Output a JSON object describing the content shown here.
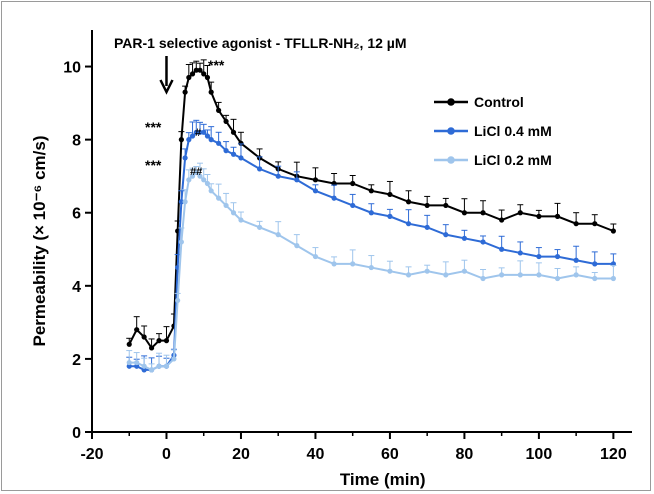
{
  "chart_data": {
    "type": "line",
    "title": "",
    "xlabel": "Time (min)",
    "ylabel": "Permeability (× 10⁻⁶ cm/s)",
    "xlim": [
      -20,
      125
    ],
    "ylim": [
      0,
      11
    ],
    "xticks": [
      -20,
      0,
      20,
      40,
      60,
      80,
      100,
      120
    ],
    "yticks": [
      0,
      2,
      4,
      6,
      8,
      10
    ],
    "grid": false,
    "legend_position": "top-right",
    "annotation": "PAR-1 selective agonist - TFLLR-NH₂, 12 µM",
    "significance_marks": [
      {
        "label": "***",
        "near": "Control peak"
      },
      {
        "label": "***",
        "near": "Control rise"
      },
      {
        "label": "***",
        "near": "LiCl 0.2 mM rise"
      },
      {
        "label": "#",
        "near": "LiCl 0.4 mM peak"
      },
      {
        "label": "##",
        "near": "LiCl 0.2 mM peak"
      }
    ],
    "series": [
      {
        "name": "Control",
        "color": "#000000",
        "x": [
          -10,
          -8,
          -6,
          -4,
          -2,
          0,
          2,
          3,
          4,
          5,
          6,
          7,
          8,
          9,
          10,
          11,
          12,
          14,
          16,
          18,
          20,
          25,
          30,
          35,
          40,
          45,
          50,
          55,
          60,
          65,
          70,
          75,
          80,
          85,
          90,
          95,
          100,
          105,
          110,
          115,
          120
        ],
        "y": [
          2.4,
          2.8,
          2.6,
          2.3,
          2.5,
          2.5,
          2.9,
          5.5,
          8.0,
          9.3,
          9.7,
          9.8,
          9.9,
          9.9,
          9.8,
          9.7,
          9.3,
          8.8,
          8.5,
          8.2,
          7.9,
          7.5,
          7.2,
          7.0,
          6.9,
          6.8,
          6.8,
          6.6,
          6.5,
          6.3,
          6.2,
          6.2,
          6.0,
          6.0,
          5.8,
          6.0,
          5.9,
          5.9,
          5.7,
          5.7,
          5.5
        ]
      },
      {
        "name": "LiCl 0.4 mM",
        "color": "#2e6bd6",
        "x": [
          -10,
          -8,
          -6,
          -4,
          -2,
          0,
          2,
          3,
          4,
          5,
          6,
          7,
          8,
          9,
          10,
          11,
          12,
          14,
          16,
          18,
          20,
          25,
          30,
          35,
          40,
          45,
          50,
          55,
          60,
          65,
          70,
          75,
          80,
          85,
          90,
          95,
          100,
          105,
          110,
          115,
          120
        ],
        "y": [
          1.8,
          1.8,
          1.7,
          1.7,
          1.8,
          1.8,
          2.1,
          4.5,
          6.3,
          7.5,
          8.0,
          8.1,
          8.2,
          8.2,
          8.2,
          8.1,
          8.0,
          7.9,
          7.7,
          7.6,
          7.5,
          7.2,
          7.0,
          6.9,
          6.6,
          6.4,
          6.2,
          6.0,
          5.9,
          5.7,
          5.6,
          5.4,
          5.3,
          5.2,
          5.0,
          4.9,
          4.8,
          4.8,
          4.7,
          4.6,
          4.6
        ]
      },
      {
        "name": "LiCl 0.2 mM",
        "color": "#9fc5ec",
        "x": [
          -10,
          -8,
          -6,
          -4,
          -2,
          0,
          2,
          3,
          4,
          5,
          6,
          7,
          8,
          9,
          10,
          11,
          12,
          14,
          16,
          18,
          20,
          25,
          30,
          35,
          40,
          45,
          50,
          55,
          60,
          65,
          70,
          75,
          80,
          85,
          90,
          95,
          100,
          105,
          110,
          115,
          120
        ],
        "y": [
          1.9,
          1.9,
          1.8,
          1.7,
          1.8,
          1.8,
          2.0,
          3.6,
          5.2,
          6.3,
          6.9,
          7.0,
          7.1,
          7.0,
          6.9,
          6.8,
          6.6,
          6.4,
          6.2,
          6.0,
          5.8,
          5.6,
          5.4,
          5.1,
          4.8,
          4.6,
          4.6,
          4.5,
          4.4,
          4.3,
          4.4,
          4.3,
          4.4,
          4.2,
          4.3,
          4.3,
          4.3,
          4.2,
          4.3,
          4.2,
          4.2
        ]
      }
    ]
  }
}
